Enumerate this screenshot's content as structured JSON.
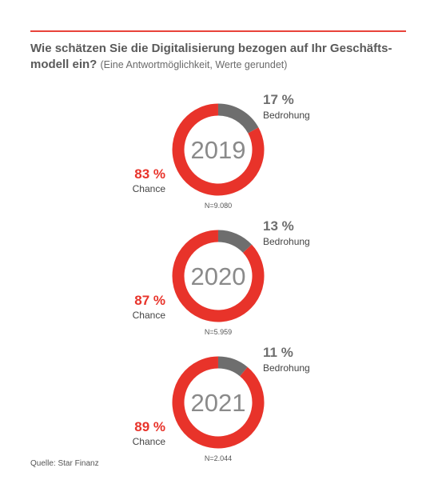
{
  "title": {
    "main": "Wie schätzen Sie die Digitalisierung bezogen auf Ihr Geschäfts-modell ein?",
    "main_line1": "Wie schätzen Sie die Digitalisierung bezogen auf Ihr Geschäfts-",
    "main_line2": "modell ein?",
    "subtitle": "(Eine Antwortmöglichkeit, Werte gerundet)"
  },
  "source": "Quelle: Star Finanz",
  "colors": {
    "chance": "#e8332a",
    "bedrohung": "#6e6e6e",
    "year_text": "#8a8a8a",
    "accent_rule": "#e8433a"
  },
  "chart_data": [
    {
      "type": "pie",
      "variant": "donut",
      "center_label": "2019",
      "n_label": "N=9.080",
      "slices": [
        {
          "name": "Bedrohung",
          "value": 17,
          "label": "17 %"
        },
        {
          "name": "Chance",
          "value": 83,
          "label": "83 %"
        }
      ]
    },
    {
      "type": "pie",
      "variant": "donut",
      "center_label": "2020",
      "n_label": "N=5.959",
      "slices": [
        {
          "name": "Bedrohung",
          "value": 13,
          "label": "13 %"
        },
        {
          "name": "Chance",
          "value": 87,
          "label": "87 %"
        }
      ]
    },
    {
      "type": "pie",
      "variant": "donut",
      "center_label": "2021",
      "n_label": "N=2.044",
      "slices": [
        {
          "name": "Bedrohung",
          "value": 11,
          "label": "11 %"
        },
        {
          "name": "Chance",
          "value": 89,
          "label": "89 %"
        }
      ]
    }
  ]
}
